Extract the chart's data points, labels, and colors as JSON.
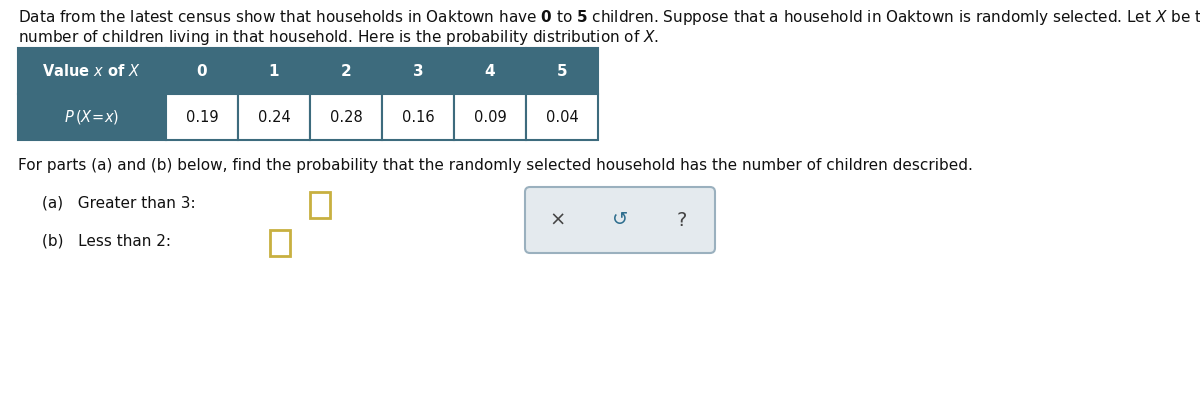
{
  "x_values": [
    "0",
    "1",
    "2",
    "3",
    "4",
    "5"
  ],
  "p_values": [
    "0.19",
    "0.24",
    "0.28",
    "0.16",
    "0.09",
    "0.04"
  ],
  "part_a_text": "(a)   Greater than 3:",
  "part_b_text": "(b)   Less than 2:",
  "for_parts_text": "For parts (a) and (b) below, find the probability that the randomly selected household has the number of children described.",
  "bg_color": "#ffffff",
  "table_header_bg": "#3d6b7d",
  "table_border_color": "#3d6b7d",
  "answer_box_border": "#c8b040",
  "icon_box_bg": "#e4eaee",
  "icon_box_border": "#9ab0be"
}
